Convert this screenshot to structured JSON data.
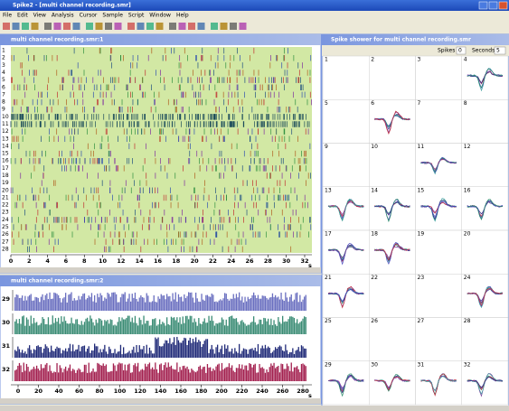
{
  "app": {
    "title": "Spike2 - [multi channel recording.smr]",
    "menu": [
      "File",
      "Edit",
      "View",
      "Analysis",
      "Cursor",
      "Sample",
      "Script",
      "Window",
      "Help"
    ]
  },
  "time_view": {
    "title": "multi channel recording.smr:1",
    "channels": [
      1,
      2,
      3,
      4,
      5,
      6,
      7,
      8,
      9,
      10,
      11,
      12,
      13,
      14,
      15,
      16,
      17,
      18,
      19,
      20,
      21,
      22,
      23,
      24,
      25,
      26,
      27,
      28
    ],
    "xticks": [
      0,
      2,
      4,
      6,
      8,
      10,
      12,
      14,
      16,
      18,
      20,
      22,
      24,
      26,
      28,
      30,
      32
    ],
    "x_unit": "s"
  },
  "histogram_view": {
    "title": "multi channel recording.smr:2",
    "channels": [
      29,
      30,
      31,
      32
    ],
    "xticks": [
      0,
      20,
      40,
      60,
      80,
      100,
      120,
      140,
      160,
      180,
      200,
      220,
      240,
      260,
      280
    ],
    "x_unit": "s"
  },
  "spike_shower": {
    "title": "Spike shower for multi channel recording.smr",
    "spikes_label": "Spikes",
    "spikes_value": 0,
    "seconds_label": "Seconds",
    "seconds_value": 5,
    "cells": [
      1,
      2,
      3,
      4,
      5,
      6,
      7,
      8,
      9,
      10,
      11,
      12,
      13,
      14,
      15,
      16,
      17,
      18,
      19,
      20,
      21,
      22,
      23,
      24,
      25,
      26,
      27,
      28,
      29,
      30,
      31,
      32
    ]
  }
}
